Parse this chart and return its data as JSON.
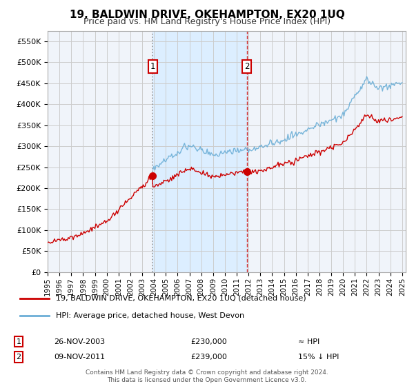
{
  "title": "19, BALDWIN DRIVE, OKEHAMPTON, EX20 1UQ",
  "subtitle": "Price paid vs. HM Land Registry's House Price Index (HPI)",
  "ylabel_ticks": [
    "£0",
    "£50K",
    "£100K",
    "£150K",
    "£200K",
    "£250K",
    "£300K",
    "£350K",
    "£400K",
    "£450K",
    "£500K",
    "£550K"
  ],
  "ylim": [
    0,
    575000
  ],
  "ytick_values": [
    0,
    50000,
    100000,
    150000,
    200000,
    250000,
    300000,
    350000,
    400000,
    450000,
    500000,
    550000
  ],
  "x_start_year": 1995,
  "x_end_year": 2025,
  "xtick_years": [
    1995,
    1996,
    1997,
    1998,
    1999,
    2000,
    2001,
    2002,
    2003,
    2004,
    2005,
    2006,
    2007,
    2008,
    2009,
    2010,
    2011,
    2012,
    2013,
    2014,
    2015,
    2016,
    2017,
    2018,
    2019,
    2020,
    2021,
    2022,
    2023,
    2024,
    2025
  ],
  "sale1_x": 2003.9,
  "sale1_y": 230000,
  "sale1_label": "1",
  "sale1_date": "26-NOV-2003",
  "sale1_price": "£230,000",
  "sale1_hpi": "≈ HPI",
  "sale2_x": 2011.85,
  "sale2_y": 239000,
  "sale2_label": "2",
  "sale2_date": "09-NOV-2011",
  "sale2_price": "£239,000",
  "sale2_hpi": "15% ↓ HPI",
  "legend_line1": "19, BALDWIN DRIVE, OKEHAMPTON, EX20 1UQ (detached house)",
  "legend_line2": "HPI: Average price, detached house, West Devon",
  "footer": "Contains HM Land Registry data © Crown copyright and database right 2024.\nThis data is licensed under the Open Government Licence v3.0.",
  "hpi_color": "#6baed6",
  "price_color": "#cc0000",
  "bg_color": "#f0f4fa",
  "grid_color": "#cccccc",
  "annotation_box_color": "#cc0000",
  "shade_color": "#dceeff",
  "sale1_vline_color": "#888888",
  "sale2_vline_color": "#cc0000"
}
